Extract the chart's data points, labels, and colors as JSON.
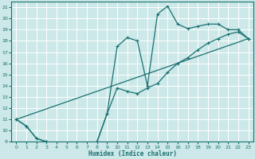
{
  "background_color": "#cce8e8",
  "grid_color": "#ffffff",
  "line_color": "#1a7070",
  "xlabel": "Humidex (Indice chaleur)",
  "ylim": [
    9,
    21.5
  ],
  "xlim": [
    -0.5,
    23.5
  ],
  "yticks": [
    9,
    10,
    11,
    12,
    13,
    14,
    15,
    16,
    17,
    18,
    19,
    20,
    21
  ],
  "xticks": [
    0,
    1,
    2,
    3,
    4,
    5,
    6,
    7,
    8,
    9,
    10,
    11,
    12,
    13,
    14,
    15,
    16,
    17,
    18,
    19,
    20,
    21,
    22,
    23
  ],
  "line1_x": [
    0,
    1,
    2,
    3,
    4,
    5,
    6,
    7,
    8,
    9,
    10,
    11,
    12,
    13,
    14,
    15,
    16,
    17,
    18,
    19,
    20,
    21,
    22,
    23
  ],
  "line1_y": [
    11,
    10.4,
    9.3,
    9.0,
    8.8,
    8.8,
    8.8,
    8.8,
    9.0,
    11.5,
    17.5,
    18.3,
    18.0,
    14.0,
    20.4,
    21.1,
    19.5,
    19.1,
    19.3,
    19.5,
    19.5,
    19.0,
    19.0,
    18.2
  ],
  "line2_x": [
    0,
    1,
    2,
    3,
    4,
    5,
    6,
    7,
    8,
    9,
    10,
    11,
    12,
    13,
    14,
    15,
    16,
    17,
    18,
    19,
    20,
    21,
    22,
    23
  ],
  "line2_y": [
    11,
    10.4,
    9.3,
    9.0,
    8.8,
    8.8,
    8.8,
    8.8,
    9.0,
    11.5,
    13.8,
    13.5,
    13.3,
    13.8,
    14.2,
    15.2,
    16.0,
    16.5,
    17.2,
    17.8,
    18.2,
    18.6,
    18.8,
    18.2
  ],
  "line3_x": [
    0,
    23
  ],
  "line3_y": [
    11,
    18.2
  ]
}
